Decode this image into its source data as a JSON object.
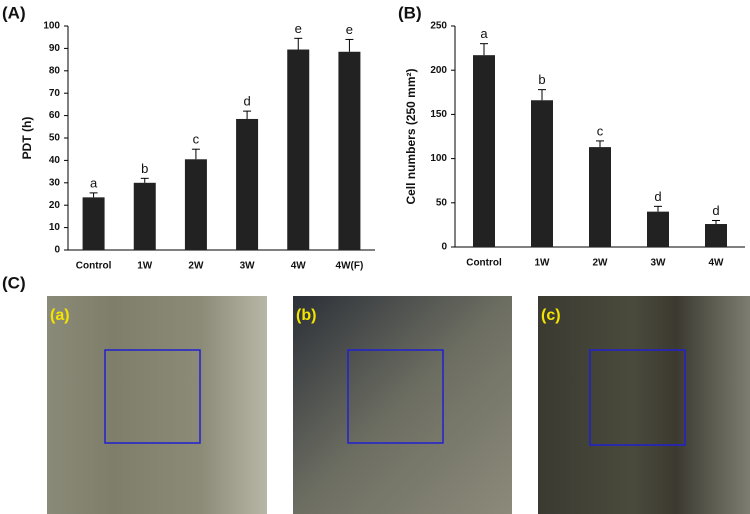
{
  "chart_data": [
    {
      "type": "bar",
      "label": "(A)",
      "y_label": "PDT (h)",
      "categories": [
        "Control",
        "1W",
        "2W",
        "3W",
        "4W",
        "4W(F)"
      ],
      "values": [
        23.5,
        30,
        40.5,
        58.5,
        89.5,
        88.5
      ],
      "errors": [
        2,
        2,
        4.5,
        3.5,
        5,
        5.5
      ],
      "letters": [
        "a",
        "b",
        "c",
        "d",
        "e",
        "e"
      ],
      "color": "#222222",
      "ylim": [
        0,
        100
      ],
      "yticks": [
        0,
        10,
        20,
        30,
        40,
        50,
        60,
        70,
        80,
        90,
        100
      ]
    },
    {
      "type": "bar",
      "label": "(B)",
      "y_label": "Cell numbers (250 mm²)",
      "categories": [
        "Control",
        "1W",
        "2W",
        "3W",
        "4W"
      ],
      "values": [
        217,
        166,
        113,
        40,
        26
      ],
      "errors": [
        13,
        12,
        7,
        6,
        4
      ],
      "letters": [
        "a",
        "b",
        "c",
        "d",
        "d"
      ],
      "color": "#222222",
      "ylim": [
        0,
        250
      ],
      "yticks": [
        0,
        50,
        100,
        150,
        200,
        250
      ]
    }
  ],
  "panel_c": {
    "label": "(C)",
    "images": [
      {
        "label": "(a)"
      },
      {
        "label": "(b)"
      },
      {
        "label": "(c)"
      }
    ]
  }
}
